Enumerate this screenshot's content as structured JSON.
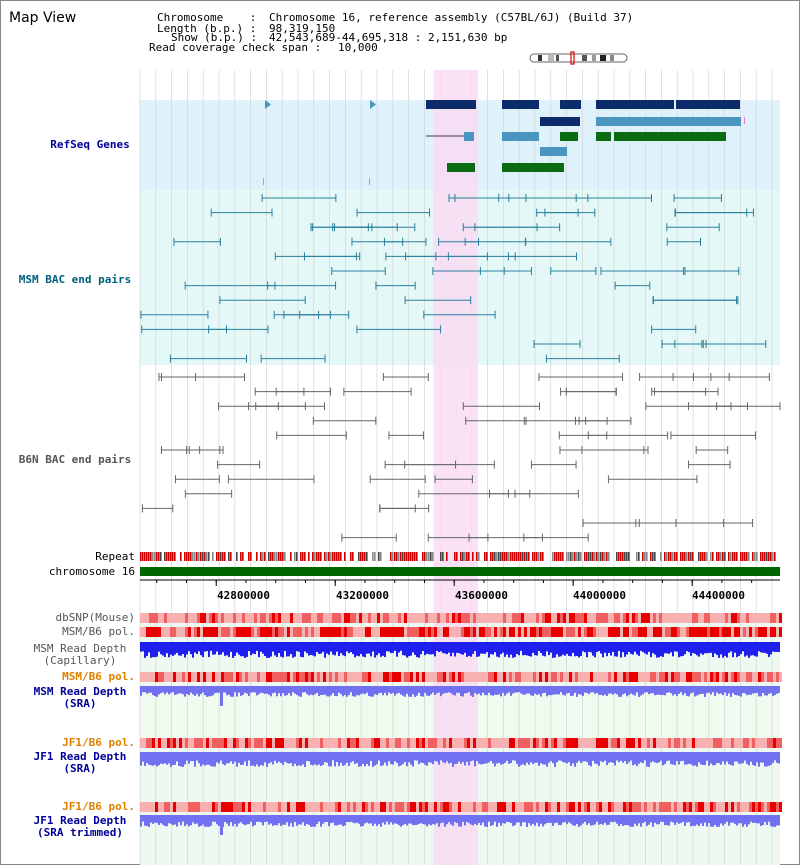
{
  "app": {
    "title": "Map View"
  },
  "info": {
    "chromosome_key": "Chromosome    :",
    "chromosome_val": "Chromosome 16, reference assembly (C57BL/6J) (Build 37)",
    "length_key": "Length (b.p.) :",
    "length_val": "98,319,150",
    "show_key": "Show (b.p.) :",
    "show_val": "42,543,689-44,695,318 : 2,151,630 bp",
    "coverage_key": "Read coverage check span :",
    "coverage_val": "10,000"
  },
  "tracks": {
    "refseq": "RefSeq Genes",
    "msm_bac": "MSM BAC end pairs",
    "b6n_bac": "B6N BAC end pairs",
    "repeat": "Repeat",
    "chromosome": "chromosome 16",
    "dbsnp": "dbSNP(Mouse)",
    "msm_b6_pol": "MSM/B6 pol.",
    "msm_depth_cap_1": "MSM Read Depth",
    "msm_depth_cap_2": "(Capillary)",
    "msm_b6_pol_2": "MSM/B6 pol.",
    "msm_depth_sra_1": "MSM Read Depth",
    "msm_depth_sra_2": "(SRA)",
    "jf1_b6_pol": "JF1/B6 pol.",
    "jf1_depth_sra_1": "JF1 Read Depth",
    "jf1_depth_sra_2": "(SRA)",
    "jf1_b6_pol_2": "JF1/B6 pol.",
    "jf1_depth_trim_1": "JF1 Read Depth",
    "jf1_depth_trim_2": "(SRA trimmed)"
  },
  "axis": {
    "ticks": [
      {
        "label": "42800000",
        "value": 42800000
      },
      {
        "label": "43200000",
        "value": 43200000
      },
      {
        "label": "43600000",
        "value": 43600000
      },
      {
        "label": "44000000",
        "value": 44000000
      },
      {
        "label": "44400000",
        "value": 44400000
      }
    ],
    "range_start": 42543689,
    "range_end": 44695318
  },
  "highlight_region": {
    "start_bp": 43530000,
    "end_bp": 43680000
  },
  "colors": {
    "refseq_bg": "#dff2fb",
    "msm_bg": "#e4f8f8",
    "highlight": "#f9d9f3",
    "gene_dark": "#0b2b6b",
    "gene_mid": "#4a96c0",
    "gene_green": "#0b6b12",
    "msm_line": "#2a7f9e",
    "b6n_line": "#666666",
    "chromosome_bar": "#006600",
    "depth_blue": "#2020ee",
    "depth_light": "#7070f0",
    "label_blue": "#000099",
    "label_teal": "#006080",
    "label_orange": "#e08000"
  }
}
